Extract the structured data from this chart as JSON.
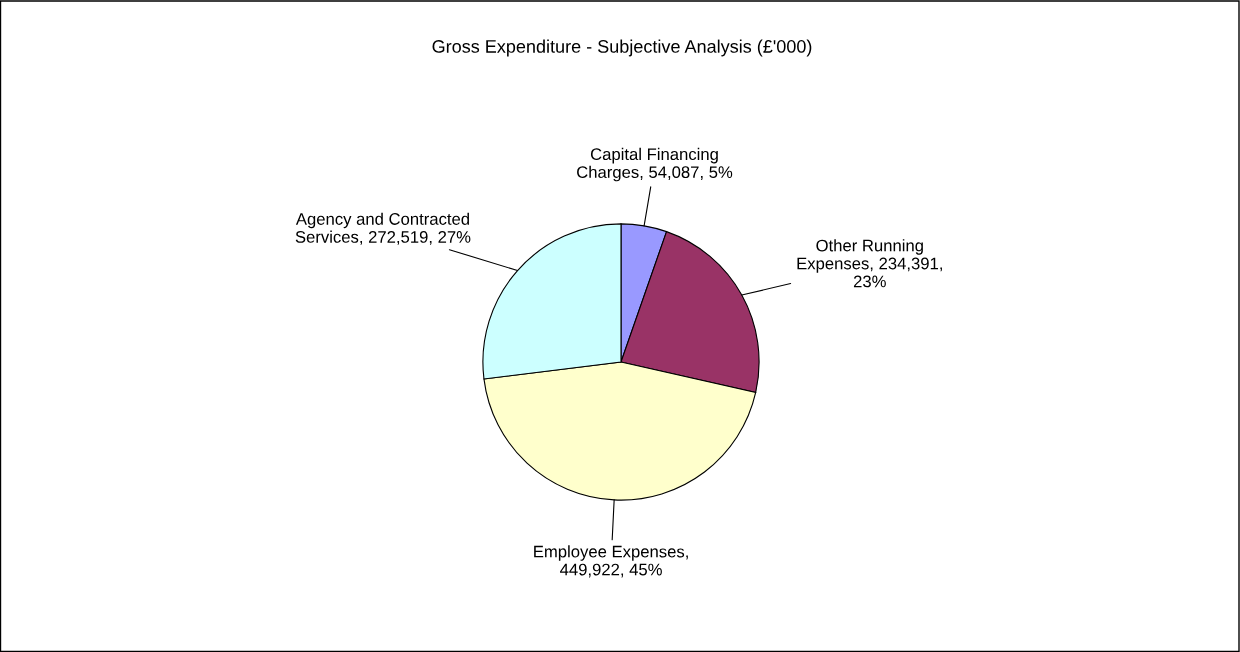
{
  "chart_data": {
    "type": "pie",
    "title": "Gross Expenditure - Subjective Analysis (£'000)",
    "categories": [
      "Capital Financing\nCharges",
      "Other Running\nExpenses",
      "Employee Expenses",
      "Agency and Contracted\nServices"
    ],
    "values": [
      54087,
      234391,
      449922,
      272519
    ],
    "value_labels": [
      ", 54,087, 5%",
      ", 234,391,\n23%",
      ",\n449,922, 45%",
      ", 272,519, 27%"
    ],
    "colors": [
      "#9999ff",
      "#993366",
      "#ffffcc",
      "#ccffff"
    ]
  }
}
